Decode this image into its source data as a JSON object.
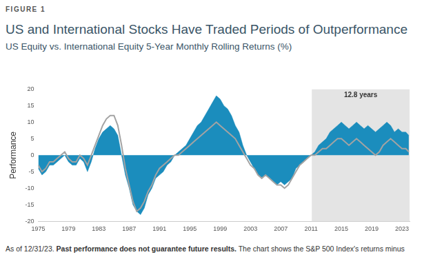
{
  "chart_data": {
    "type": "area",
    "label": "FIGURE 1",
    "title": "US and International Stocks Have Traded Periods of Outperformance",
    "subtitle": "US Equity vs. International Equity 5-Year Monthly Rolling Returns (%)",
    "y_label": "Performance",
    "x": [
      1975,
      1975.5,
      1976,
      1976.5,
      1977,
      1977.5,
      1978,
      1978.5,
      1979,
      1979.5,
      1980,
      1980.5,
      1981,
      1981.5,
      1982,
      1982.5,
      1983,
      1983.5,
      1984,
      1984.5,
      1985,
      1985.5,
      1986,
      1986.5,
      1987,
      1987.5,
      1988,
      1988.5,
      1989,
      1989.5,
      1990,
      1990.5,
      1991,
      1991.5,
      1992,
      1992.5,
      1993,
      1993.5,
      1994,
      1994.5,
      1995,
      1995.5,
      1996,
      1996.5,
      1997,
      1997.5,
      1998,
      1998.5,
      1999,
      1999.5,
      2000,
      2000.5,
      2001,
      2001.5,
      2002,
      2002.5,
      2003,
      2003.5,
      2004,
      2004.5,
      2005,
      2005.5,
      2006,
      2006.5,
      2007,
      2007.5,
      2008,
      2008.5,
      2009,
      2009.5,
      2010,
      2010.5,
      2011,
      2011.5,
      2012,
      2012.5,
      2013,
      2013.5,
      2014,
      2014.5,
      2015,
      2015.5,
      2016,
      2016.5,
      2017,
      2017.5,
      2018,
      2018.5,
      2019,
      2019.5,
      2020,
      2020.5,
      2021,
      2021.5,
      2022,
      2022.5,
      2023,
      2023.5,
      2023.9
    ],
    "series": [
      {
        "type": "area",
        "color": "#1b8dbd",
        "values": [
          -4,
          -6,
          -5,
          -3,
          -3,
          -2,
          -1,
          0,
          -2,
          -3,
          -3,
          -1,
          -2,
          -5,
          -2,
          2,
          5,
          7,
          8,
          9,
          8,
          6,
          0,
          -6,
          -10,
          -15,
          -17,
          -18,
          -16,
          -12,
          -10,
          -7,
          -6,
          -5,
          -3,
          -2,
          0,
          1,
          2,
          3,
          5,
          7,
          9,
          10,
          12,
          14,
          16,
          18,
          17,
          15,
          14,
          12,
          9,
          7,
          3,
          0,
          -2,
          -4,
          -6,
          -7,
          -6,
          -7,
          -8,
          -9,
          -8,
          -9,
          -8,
          -7,
          -4,
          -3,
          -2,
          -1,
          0,
          1,
          3,
          4,
          5,
          7,
          8,
          9,
          10,
          9,
          8,
          9,
          10,
          9,
          8,
          9,
          8,
          7,
          8,
          9,
          10,
          9,
          7,
          8,
          7,
          7,
          6
        ]
      },
      {
        "type": "line",
        "color": "#a3a3a3",
        "values": [
          -3,
          -5,
          -4,
          -2,
          -2,
          -1,
          0,
          1,
          -1,
          -2,
          -2,
          0,
          -1,
          -3,
          0,
          3,
          6,
          9,
          11,
          12,
          12,
          9,
          3,
          -4,
          -9,
          -14,
          -17,
          -16,
          -14,
          -11,
          -9,
          -6,
          -4,
          -3,
          -2,
          -1,
          0,
          0,
          1,
          2,
          3,
          4,
          5,
          6,
          7,
          8,
          9,
          10,
          9,
          8,
          7,
          6,
          5,
          3,
          1,
          -1,
          -3,
          -4,
          -6,
          -7,
          -6,
          -7,
          -8,
          -9,
          -9,
          -10,
          -9,
          -7,
          -5,
          -3,
          -2,
          -1,
          0,
          0,
          1,
          2,
          2,
          3,
          4,
          5,
          5,
          4,
          3,
          4,
          5,
          4,
          3,
          2,
          1,
          0,
          1,
          3,
          4,
          5,
          4,
          3,
          2,
          2,
          1
        ]
      }
    ],
    "xlim": [
      1975,
      2024
    ],
    "xticks": [
      1975,
      1979,
      1983,
      1987,
      1991,
      1995,
      1999,
      2003,
      2007,
      2011,
      2015,
      2019,
      2023
    ],
    "ylim": [
      -20,
      20
    ],
    "yticks": [
      -20,
      -15,
      -10,
      -5,
      0,
      5,
      10,
      15,
      20
    ],
    "grid": false,
    "annotations": [
      {
        "text": "12.8 years",
        "x_start": 2011.1,
        "x_end": 2024
      }
    ],
    "footer": [
      "As of 12/31/23.",
      "Past performance does not guarantee future results.",
      "The chart shows the S&P 500 Index's returns minus"
    ]
  }
}
